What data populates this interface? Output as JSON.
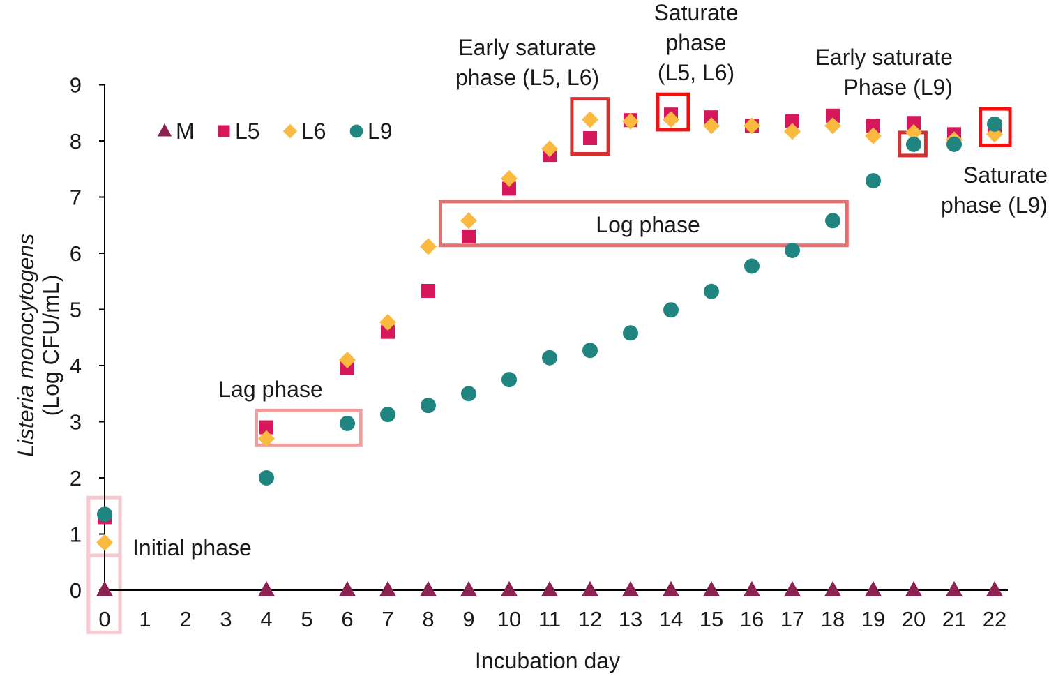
{
  "chart_data": {
    "type": "scatter",
    "xlabel": "Incubation day",
    "ylabel_line1": "Listeria monocytogens",
    "ylabel_line2": "(Log CFU/mL)",
    "ylim": [
      0,
      9
    ],
    "yticks": [
      0,
      1,
      2,
      3,
      4,
      5,
      6,
      7,
      8,
      9
    ],
    "categories": [
      "0",
      "1",
      "2",
      "3",
      "4",
      "5",
      "6",
      "7",
      "8",
      "9",
      "10",
      "11",
      "12",
      "13",
      "14",
      "15",
      "16",
      "17",
      "18",
      "19",
      "20",
      "21",
      "22"
    ],
    "legend_position": "top-left",
    "grid": false,
    "series": [
      {
        "name": "M",
        "marker": "triangle",
        "color": "#8B2252",
        "points": [
          [
            0,
            0
          ],
          [
            4,
            0
          ],
          [
            6,
            0
          ],
          [
            7,
            0
          ],
          [
            8,
            0
          ],
          [
            9,
            0
          ],
          [
            10,
            0
          ],
          [
            11,
            0
          ],
          [
            12,
            0
          ],
          [
            13,
            0
          ],
          [
            14,
            0
          ],
          [
            15,
            0
          ],
          [
            16,
            0
          ],
          [
            17,
            0
          ],
          [
            18,
            0
          ],
          [
            19,
            0
          ],
          [
            20,
            0
          ],
          [
            21,
            0
          ],
          [
            22,
            0
          ]
        ]
      },
      {
        "name": "L5",
        "marker": "square",
        "color": "#D6175C",
        "points": [
          [
            0,
            1.3
          ],
          [
            4,
            2.9
          ],
          [
            6,
            3.95
          ],
          [
            7,
            4.6
          ],
          [
            8,
            5.33
          ],
          [
            9,
            6.3
          ],
          [
            10,
            7.15
          ],
          [
            11,
            7.75
          ],
          [
            12,
            8.05
          ],
          [
            13,
            8.37
          ],
          [
            14,
            8.47
          ],
          [
            15,
            8.42
          ],
          [
            16,
            8.27
          ],
          [
            17,
            8.35
          ],
          [
            18,
            8.45
          ],
          [
            19,
            8.27
          ],
          [
            20,
            8.32
          ],
          [
            21,
            8.12
          ],
          [
            22,
            8.25
          ]
        ]
      },
      {
        "name": "L6",
        "marker": "diamond",
        "color": "#FBB93F",
        "points": [
          [
            0,
            0.85
          ],
          [
            4,
            2.7
          ],
          [
            6,
            4.1
          ],
          [
            7,
            4.77
          ],
          [
            8,
            6.12
          ],
          [
            9,
            6.58
          ],
          [
            10,
            7.33
          ],
          [
            11,
            7.86
          ],
          [
            12,
            8.38
          ],
          [
            13,
            8.35
          ],
          [
            14,
            8.38
          ],
          [
            15,
            8.27
          ],
          [
            16,
            8.27
          ],
          [
            17,
            8.17
          ],
          [
            18,
            8.27
          ],
          [
            19,
            8.09
          ],
          [
            20,
            8.15
          ],
          [
            21,
            8.02
          ],
          [
            22,
            8.12
          ]
        ]
      },
      {
        "name": "L9",
        "marker": "circle",
        "color": "#208481",
        "points": [
          [
            0,
            1.35
          ],
          [
            4,
            2.0
          ],
          [
            6,
            2.97
          ],
          [
            7,
            3.13
          ],
          [
            8,
            3.29
          ],
          [
            9,
            3.5
          ],
          [
            10,
            3.75
          ],
          [
            11,
            4.14
          ],
          [
            12,
            4.27
          ],
          [
            13,
            4.58
          ],
          [
            14,
            4.99
          ],
          [
            15,
            5.32
          ],
          [
            16,
            5.77
          ],
          [
            17,
            6.05
          ],
          [
            18,
            6.58
          ],
          [
            19,
            7.29
          ],
          [
            20,
            7.94
          ],
          [
            21,
            7.94
          ],
          [
            22,
            8.3
          ]
        ]
      }
    ],
    "annotations": {
      "initial_phase": {
        "lines": [
          "Initial phase"
        ]
      },
      "lag_phase": {
        "lines": [
          "Lag phase"
        ]
      },
      "log_phase": {
        "lines": [
          "Log phase"
        ]
      },
      "early_saturate_l5l6": {
        "lines": [
          "Early saturate",
          "phase (L5, L6)"
        ]
      },
      "saturate_l5l6": {
        "lines": [
          "Saturate",
          "phase",
          "(L5, L6)"
        ]
      },
      "early_saturate_l9": {
        "lines": [
          "Early saturate",
          "Phase (L9)"
        ]
      },
      "saturate_l9": {
        "lines": [
          "Saturate",
          "phase (L9)"
        ]
      }
    },
    "box_colors": {
      "initial": "#F6C8CF",
      "lag": "#EE9C9C",
      "log": "#E46F6F",
      "early": "#D72F2F",
      "saturate": "#F01010"
    }
  }
}
